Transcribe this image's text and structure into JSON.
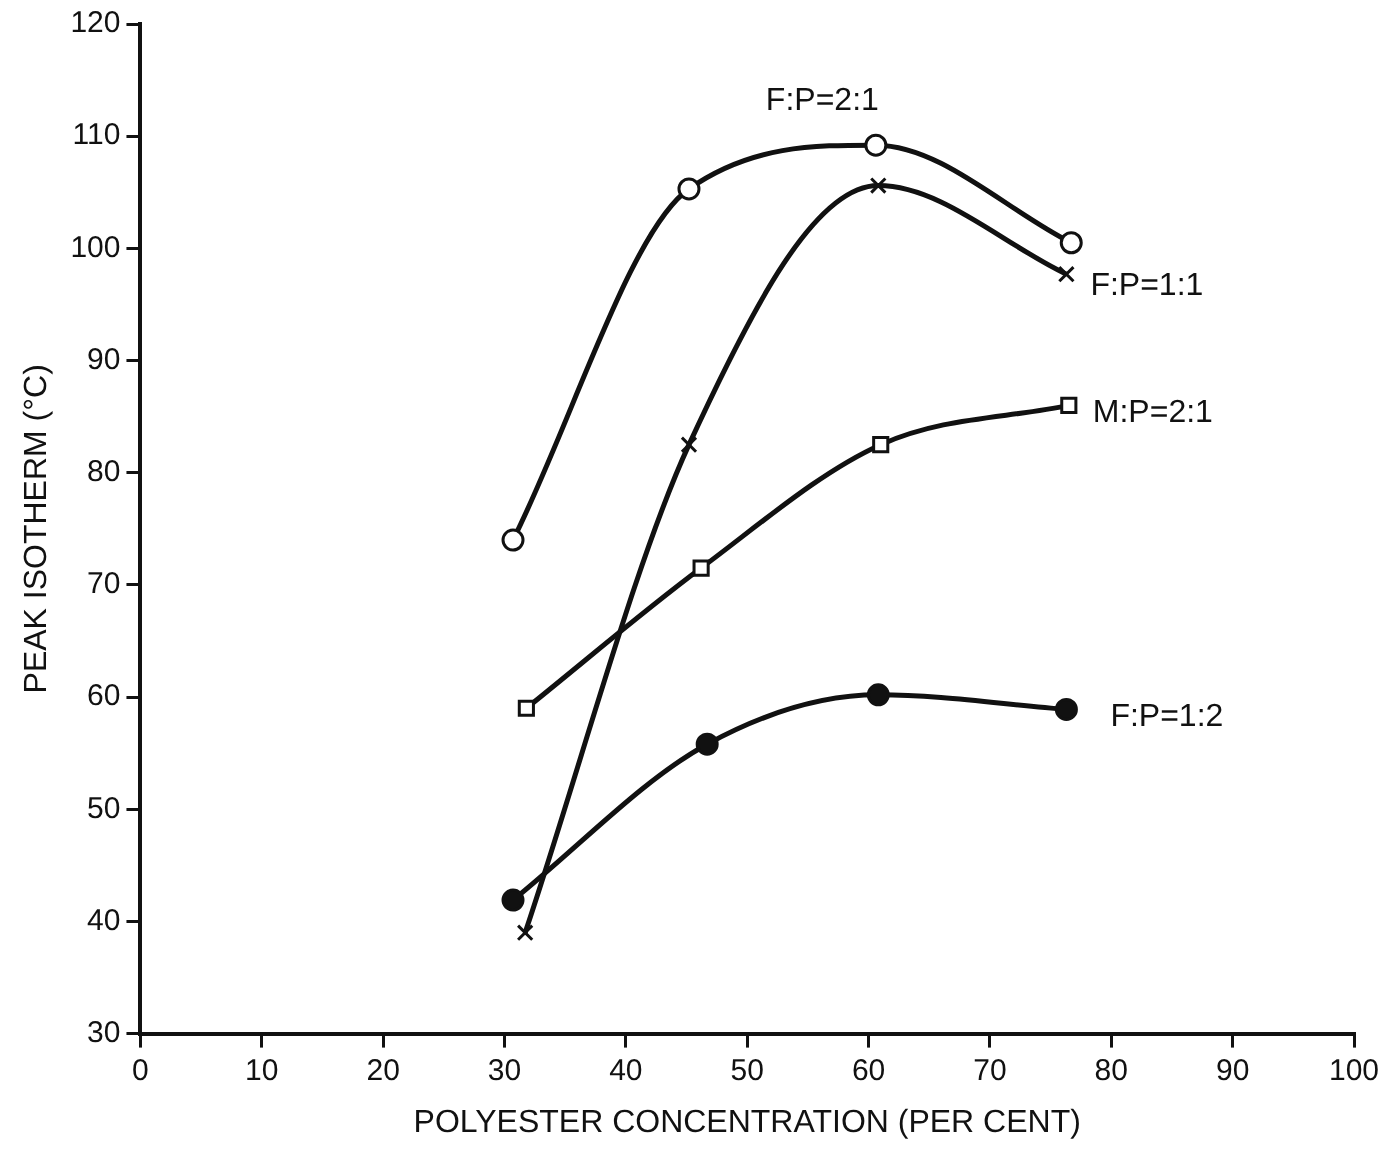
{
  "chart_data": {
    "type": "line",
    "xlabel": "POLYESTER CONCENTRATION (PER CENT)",
    "ylabel": "PEAK ISOTHERM (°C)",
    "xlim": [
      0,
      100
    ],
    "xticks": [
      0,
      10,
      20,
      30,
      40,
      50,
      60,
      70,
      80,
      90,
      100
    ],
    "ylim": [
      30,
      120
    ],
    "yticks": [
      30,
      40,
      50,
      60,
      70,
      80,
      90,
      100,
      110,
      120
    ],
    "grid": false,
    "legend": false,
    "series": [
      {
        "name": "F:P=2:1",
        "color": "#111111",
        "marker": "circle",
        "x": [
          30.7,
          45.2,
          60.6,
          76.7
        ],
        "values": [
          74,
          105.3,
          109.2,
          100.5
        ]
      },
      {
        "name": "F:P=1:1",
        "color": "#111111",
        "marker": "cross",
        "x": [
          31.7,
          45.2,
          60.8,
          76.3
        ],
        "values": [
          39,
          82.5,
          105.6,
          97.7
        ]
      },
      {
        "name": "M:P=2:1",
        "color": "#111111",
        "marker": "square",
        "x": [
          31.8,
          46.2,
          61,
          76.5
        ],
        "values": [
          59,
          71.5,
          82.5,
          86
        ]
      },
      {
        "name": "F:P=1:2",
        "color": "#111111",
        "marker": "circle",
        "x": [
          30.7,
          46.7,
          60.8,
          76.3
        ],
        "values": [
          41.9,
          55.8,
          60.2,
          58.9
        ]
      }
    ]
  }
}
